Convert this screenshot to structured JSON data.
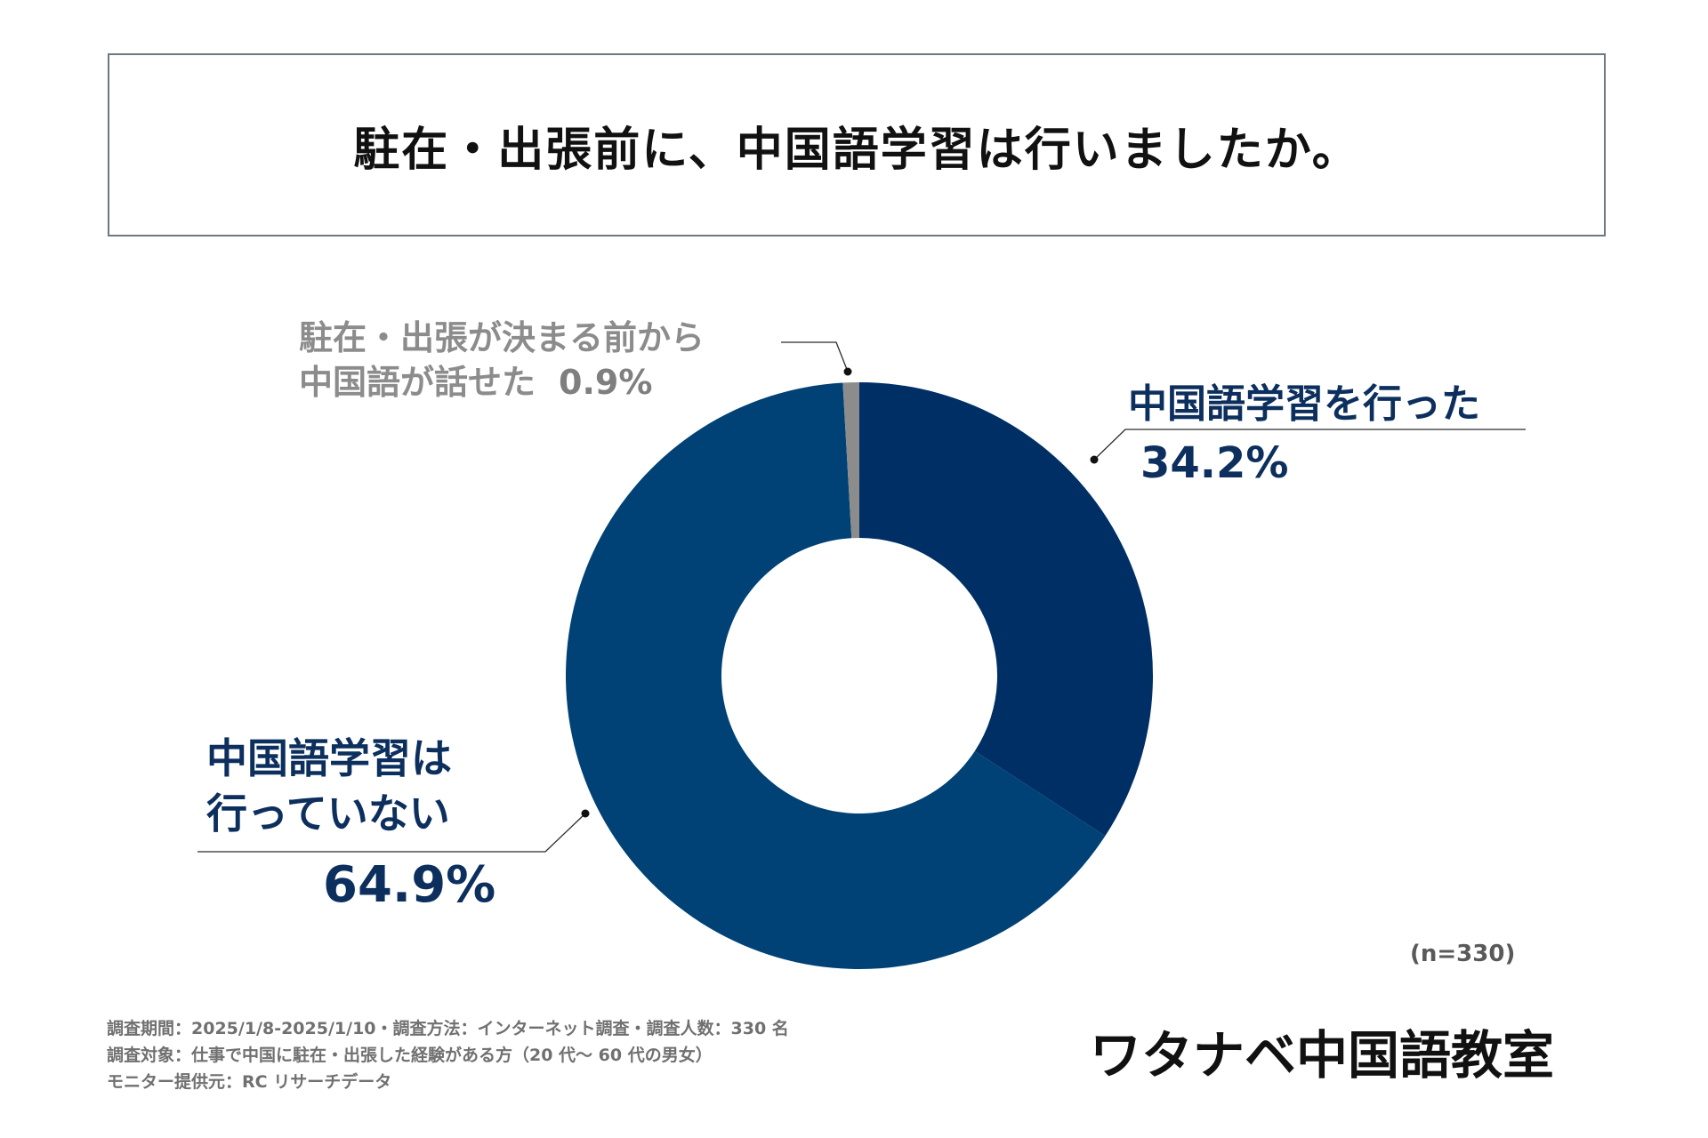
{
  "title": "駐在・出張前に、中国語学習は行いましたか。",
  "chart_data": {
    "type": "pie",
    "donut": true,
    "title": "駐在・出張前に、中国語学習は行いましたか。",
    "start": "top",
    "direction": "clockwise",
    "slices": [
      {
        "key": "did",
        "label": "中国語学習を行った",
        "value": 34.2,
        "value_label": "34.2%",
        "color": "#002f66"
      },
      {
        "key": "not",
        "label_lines": [
          "中国語学習は",
          "行っていない"
        ],
        "value": 64.9,
        "value_label": "64.9%",
        "color": "#004276"
      },
      {
        "key": "could",
        "label_lines": [
          "駐在・出張が決まる前から",
          "中国語が話せた"
        ],
        "value": 0.9,
        "value_label": "0.9%",
        "color": "#8c8c8c"
      }
    ],
    "sample_size": "(n=330)"
  },
  "footnotes": [
    "調査期間：2025/1/8-2025/1/10・調査方法：インターネット調査・調査人数：330 名",
    "調査対象：仕事で中国に駐在・出張した経験がある方（20 代～ 60 代の男女）",
    "モニター提供元：RC リサーチデータ"
  ],
  "brand": "ワタナベ中国語教室"
}
